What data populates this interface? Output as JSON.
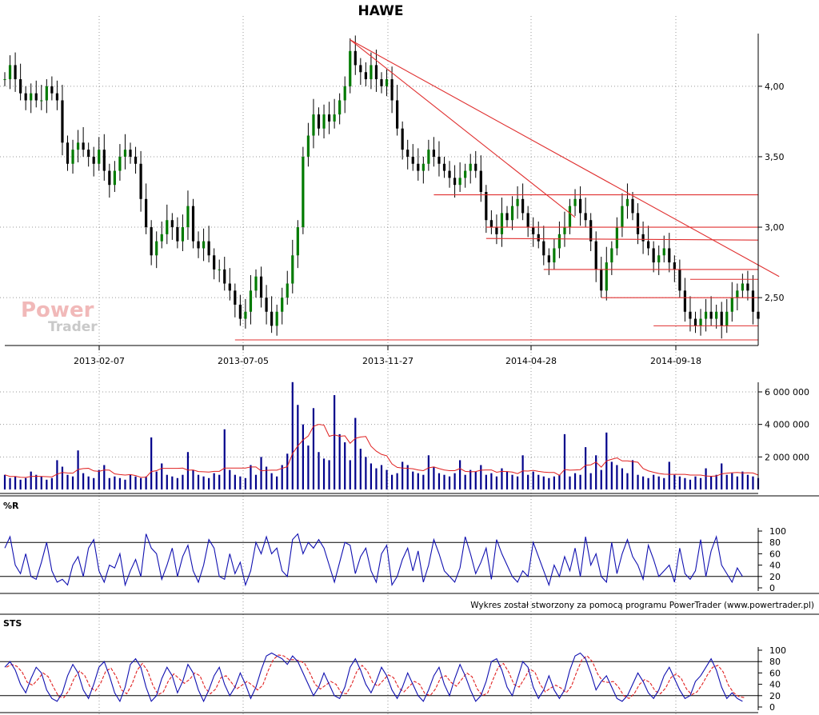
{
  "chart_data": [
    {
      "type": "candlestick",
      "title": "HAWE",
      "grid": true,
      "x_ticks": [
        "2013-02-07",
        "2013-07-05",
        "2013-11-27",
        "2014-04-28",
        "2014-09-18"
      ],
      "y_ticks": [
        "2,50",
        "3,00",
        "3,50",
        "4,00"
      ],
      "ylim": [
        2.2,
        4.35
      ],
      "close": [
        4.05,
        4.15,
        4.05,
        3.95,
        3.9,
        3.95,
        3.9,
        3.9,
        4.0,
        3.95,
        3.9,
        3.6,
        3.45,
        3.55,
        3.6,
        3.55,
        3.5,
        3.45,
        3.55,
        3.4,
        3.3,
        3.4,
        3.5,
        3.55,
        3.5,
        3.45,
        3.2,
        3.0,
        2.8,
        2.9,
        2.95,
        3.05,
        3.0,
        2.9,
        3.0,
        3.15,
        2.9,
        2.85,
        2.9,
        2.8,
        2.7,
        2.7,
        2.6,
        2.55,
        2.45,
        2.35,
        2.4,
        2.55,
        2.65,
        2.5,
        2.4,
        2.3,
        2.4,
        2.5,
        2.6,
        2.8,
        3.0,
        3.5,
        3.65,
        3.8,
        3.7,
        3.8,
        3.75,
        3.8,
        3.9,
        4.0,
        4.25,
        4.15,
        4.1,
        4.05,
        4.15,
        4.05,
        4.0,
        4.05,
        3.9,
        3.7,
        3.55,
        3.5,
        3.45,
        3.4,
        3.45,
        3.55,
        3.5,
        3.45,
        3.4,
        3.35,
        3.3,
        3.35,
        3.4,
        3.45,
        3.4,
        3.25,
        3.05,
        3.0,
        2.95,
        3.1,
        3.05,
        3.15,
        3.2,
        3.1,
        3.0,
        2.95,
        2.9,
        2.8,
        2.75,
        2.85,
        2.95,
        3.0,
        3.15,
        3.2,
        3.1,
        3.05,
        2.9,
        2.7,
        2.55,
        2.75,
        2.85,
        3.0,
        3.15,
        3.2,
        3.1,
        2.95,
        2.9,
        2.85,
        2.75,
        2.8,
        2.85,
        2.75,
        2.7,
        2.55,
        2.4,
        2.35,
        2.3,
        2.35,
        2.4,
        2.35,
        2.4,
        2.3,
        2.4,
        2.5,
        2.55,
        2.6,
        2.55,
        2.4,
        2.35
      ],
      "annotations": {
        "trend_lines": [
          {
            "from": [
              66,
              4.33
            ],
            "to": [
              148,
              2.65
            ]
          },
          {
            "from": [
              66,
              4.33
            ],
            "to": [
              109,
              3.07
            ]
          }
        ],
        "support_levels": [
          3.23,
          3.0,
          2.92,
          2.7,
          2.63,
          2.5,
          2.3,
          2.2
        ]
      }
    },
    {
      "type": "bar",
      "title": "",
      "ylabel": "",
      "y_ticks": [
        "2 000 000",
        "4 000 000",
        "6 000 000"
      ],
      "ylim": [
        0,
        6800000
      ],
      "values": [
        900000,
        700000,
        800000,
        600000,
        700000,
        1100000,
        900000,
        800000,
        600000,
        700000,
        1800000,
        1400000,
        900000,
        800000,
        2400000,
        1000000,
        800000,
        700000,
        1200000,
        1500000,
        700000,
        800000,
        700000,
        600000,
        900000,
        800000,
        700000,
        800000,
        3200000,
        1100000,
        1600000,
        900000,
        800000,
        700000,
        900000,
        2300000,
        1200000,
        900000,
        800000,
        700000,
        1000000,
        900000,
        3700000,
        1200000,
        900000,
        800000,
        700000,
        1500000,
        900000,
        2000000,
        1400000,
        1000000,
        800000,
        1500000,
        2200000,
        6600000,
        5200000,
        4000000,
        2700000,
        5000000,
        2300000,
        1900000,
        1800000,
        5800000,
        3400000,
        2900000,
        1800000,
        4400000,
        2500000,
        2000000,
        1600000,
        1300000,
        1500000,
        1200000,
        900000,
        1000000,
        1700000,
        1500000,
        1100000,
        1000000,
        900000,
        2100000,
        1400000,
        1000000,
        900000,
        800000,
        1000000,
        1800000,
        900000,
        1200000,
        1100000,
        1500000,
        900000,
        1000000,
        800000,
        1300000,
        1100000,
        900000,
        800000,
        2100000,
        900000,
        1100000,
        900000,
        800000,
        700000,
        800000,
        900000,
        3400000,
        800000,
        1000000,
        900000,
        2600000,
        1000000,
        2100000,
        1200000,
        3500000,
        1700000,
        1500000,
        1300000,
        1000000,
        1800000,
        900000,
        800000,
        700000,
        900000,
        800000,
        700000,
        1700000,
        900000,
        800000,
        700000,
        600000,
        800000,
        700000,
        1300000,
        800000,
        900000,
        1600000,
        900000,
        1000000,
        800000,
        1100000,
        900000,
        800000,
        700000
      ],
      "series_names": []
    },
    {
      "type": "line",
      "title": "%R",
      "y_ticks": [
        "0",
        "20",
        "40",
        "60",
        "80",
        "100"
      ],
      "ylim": [
        0,
        100
      ],
      "reference_lines": [
        20,
        80
      ],
      "values": [
        70,
        90,
        40,
        25,
        60,
        20,
        15,
        45,
        80,
        30,
        10,
        15,
        5,
        40,
        55,
        20,
        70,
        85,
        30,
        10,
        40,
        35,
        60,
        5,
        30,
        50,
        20,
        95,
        70,
        60,
        15,
        40,
        70,
        20,
        55,
        75,
        30,
        10,
        40,
        85,
        70,
        20,
        15,
        60,
        25,
        45,
        5,
        30,
        80,
        60,
        90,
        60,
        70,
        30,
        20,
        85,
        95,
        60,
        80,
        70,
        85,
        70,
        40,
        10,
        45,
        80,
        75,
        25,
        55,
        70,
        30,
        10,
        60,
        75,
        5,
        20,
        50,
        70,
        30,
        65,
        10,
        40,
        85,
        60,
        30,
        20,
        10,
        35,
        90,
        60,
        25,
        45,
        70,
        15,
        85,
        60,
        40,
        20,
        10,
        30,
        20,
        80,
        55,
        30,
        5,
        40,
        20,
        55,
        30,
        70,
        20,
        90,
        40,
        60,
        20,
        10,
        80,
        25,
        60,
        85,
        55,
        40,
        15,
        75,
        50,
        20,
        30,
        40,
        10,
        70,
        25,
        15,
        30,
        85,
        20,
        65,
        90,
        40,
        25,
        10,
        35,
        20
      ],
      "series_names": []
    },
    {
      "type": "line",
      "title": "STS",
      "y_ticks": [
        "0",
        "20",
        "40",
        "60",
        "80",
        "100"
      ],
      "ylim": [
        0,
        100
      ],
      "reference_lines": [
        20,
        80
      ],
      "values": [
        70,
        80,
        65,
        40,
        25,
        50,
        70,
        60,
        30,
        15,
        10,
        25,
        55,
        75,
        60,
        30,
        15,
        40,
        70,
        80,
        55,
        25,
        10,
        35,
        75,
        85,
        70,
        35,
        10,
        20,
        50,
        70,
        55,
        25,
        45,
        75,
        60,
        30,
        10,
        30,
        55,
        70,
        40,
        20,
        35,
        60,
        40,
        15,
        35,
        65,
        90,
        95,
        90,
        85,
        75,
        90,
        80,
        60,
        40,
        20,
        35,
        60,
        40,
        20,
        15,
        35,
        70,
        85,
        65,
        40,
        25,
        45,
        70,
        55,
        30,
        15,
        35,
        60,
        40,
        20,
        10,
        30,
        55,
        70,
        40,
        20,
        50,
        75,
        55,
        30,
        10,
        20,
        45,
        80,
        85,
        65,
        35,
        20,
        50,
        80,
        70,
        35,
        15,
        30,
        55,
        30,
        15,
        30,
        65,
        90,
        95,
        85,
        60,
        30,
        45,
        55,
        35,
        15,
        10,
        20,
        40,
        60,
        45,
        25,
        15,
        30,
        55,
        70,
        50,
        30,
        15,
        20,
        45,
        55,
        70,
        85,
        65,
        35,
        15,
        25,
        15,
        10
      ],
      "series_names": []
    }
  ],
  "credit": "Wykres został stworzony za pomocą programu PowerTrader (www.powertrader.pl)",
  "watermark": {
    "line1": "Power",
    "line2": "Trader"
  },
  "colors": {
    "candle_body": "#007a00",
    "candle_wick": "#000000",
    "annotation": "#e03030",
    "volume": "#00008b",
    "volume_ma": "#e02020",
    "oscillator": "#1010b0",
    "signal": "#e02020",
    "grid": "#999999"
  }
}
